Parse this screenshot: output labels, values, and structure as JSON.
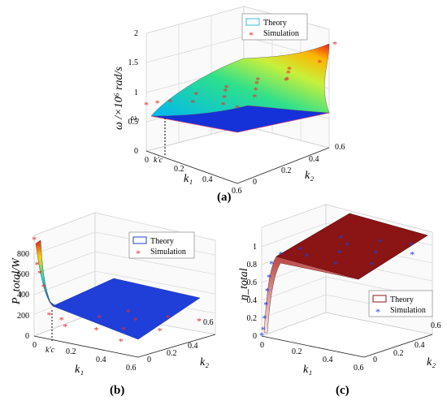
{
  "chart_data": [
    {
      "panel": "(a)",
      "type": "surface",
      "zlabel": "ω /×10⁶ rad/s",
      "xlabel": "k₁",
      "ylabel": "k₂",
      "z_annotation": "ω₀",
      "x_annotation": "k′c",
      "x_ticks": [
        "0",
        "0.2",
        "0.4",
        "0.6"
      ],
      "y_ticks": [
        "0",
        "0.2",
        "0.4",
        "0.6"
      ],
      "z_ticks": [
        "0",
        "0.5",
        "1",
        "1.5",
        "2"
      ],
      "xlim": [
        0,
        0.6
      ],
      "ylim": [
        0,
        0.6
      ],
      "zlim": [
        0,
        2
      ],
      "kc": 0.07,
      "legend": [
        {
          "label": "Theory",
          "marker": "surface",
          "color": "#3bb8e0"
        },
        {
          "label": "Simulation",
          "marker": "*",
          "color": "#e03030"
        }
      ],
      "series": [
        {
          "name": "Theory",
          "type": "surface",
          "description": "upper surface rises with k1 and k2 up to ~1.95; flat blue plane at ω0 ≈ 0.8 for k1 < k'c"
        },
        {
          "name": "Simulation",
          "type": "scatter",
          "points": [
            {
              "k1": 0.0,
              "k2": 0.0,
              "z": 0.8
            },
            {
              "k1": 0.02,
              "k2": 0.05,
              "z": 0.81
            },
            {
              "k1": 0.05,
              "k2": 0.1,
              "z": 0.82
            },
            {
              "k1": 0.06,
              "k2": 0.25,
              "z": 0.85
            },
            {
              "k1": 0.1,
              "k2": 0.4,
              "z": 0.9
            },
            {
              "k1": 0.2,
              "k2": 0.1,
              "z": 0.95
            },
            {
              "k1": 0.2,
              "k2": 0.3,
              "z": 1.0
            },
            {
              "k1": 0.2,
              "k2": 0.5,
              "z": 1.05
            },
            {
              "k1": 0.3,
              "k2": 0.2,
              "z": 1.05
            },
            {
              "k1": 0.3,
              "k2": 0.4,
              "z": 1.15
            },
            {
              "k1": 0.3,
              "k2": 0.6,
              "z": 1.25
            },
            {
              "k1": 0.4,
              "k2": 0.1,
              "z": 1.1
            },
            {
              "k1": 0.4,
              "k2": 0.3,
              "z": 1.2
            },
            {
              "k1": 0.4,
              "k2": 0.5,
              "z": 1.35
            },
            {
              "k1": 0.5,
              "k2": 0.2,
              "z": 1.25
            },
            {
              "k1": 0.5,
              "k2": 0.4,
              "z": 1.4
            },
            {
              "k1": 0.5,
              "k2": 0.6,
              "z": 1.55
            },
            {
              "k1": 0.6,
              "k2": 0.0,
              "z": 1.3
            },
            {
              "k1": 0.6,
              "k2": 0.3,
              "z": 1.55
            },
            {
              "k1": 0.6,
              "k2": 0.6,
              "z": 1.95
            }
          ]
        }
      ]
    },
    {
      "panel": "(b)",
      "type": "surface",
      "zlabel": "P_total/W",
      "xlabel": "k₁",
      "ylabel": "k₂",
      "x_annotation": "k′c",
      "x_ticks": [
        "0",
        "0.2",
        "0.4",
        "0.6"
      ],
      "y_ticks": [
        "0",
        "0.2",
        "0.4",
        "0.6"
      ],
      "z_ticks": [
        "0",
        "200",
        "400",
        "600",
        "800"
      ],
      "xlim": [
        0,
        0.6
      ],
      "ylim": [
        0,
        0.6
      ],
      "zlim": [
        0,
        900
      ],
      "legend": [
        {
          "label": "Theory",
          "marker": "surface",
          "color": "#1f3fd8"
        },
        {
          "label": "Simulation",
          "marker": "*",
          "color": "#e03030"
        }
      ],
      "series": [
        {
          "name": "Theory",
          "type": "surface",
          "description": "sharp peak ~880 W at k1→0, drops to ~150 W at k'c, flat plane ~120 W elsewhere"
        },
        {
          "name": "Simulation",
          "type": "scatter",
          "points": [
            {
              "k1": 0.0,
              "k2": 0.0,
              "z": 870
            },
            {
              "k1": 0.005,
              "k2": 0.02,
              "z": 640
            },
            {
              "k1": 0.01,
              "k2": 0.04,
              "z": 560
            },
            {
              "k1": 0.02,
              "k2": 0.06,
              "z": 430
            },
            {
              "k1": 0.04,
              "k2": 0.08,
              "z": 180
            },
            {
              "k1": 0.1,
              "k2": 0.1,
              "z": 150
            },
            {
              "k1": 0.15,
              "k2": 0.05,
              "z": 120
            },
            {
              "k1": 0.2,
              "k2": 0.3,
              "z": 130
            },
            {
              "k1": 0.25,
              "k2": 0.5,
              "z": 125
            },
            {
              "k1": 0.3,
              "k2": 0.1,
              "z": 120
            },
            {
              "k1": 0.35,
              "k2": 0.4,
              "z": 118
            },
            {
              "k1": 0.4,
              "k2": 0.2,
              "z": 122
            },
            {
              "k1": 0.45,
              "k2": 0.55,
              "z": 120
            },
            {
              "k1": 0.5,
              "k2": 0.0,
              "z": 118
            },
            {
              "k1": 0.55,
              "k2": 0.3,
              "z": 121
            },
            {
              "k1": 0.6,
              "k2": 0.6,
              "z": 120
            }
          ]
        }
      ]
    },
    {
      "panel": "(c)",
      "type": "surface",
      "zlabel": "η_total",
      "xlabel": "k₁",
      "ylabel": "k₂",
      "x_ticks": [
        "0",
        "0.2",
        "0.4",
        "0.6"
      ],
      "y_ticks": [
        "0",
        "0.2",
        "0.4",
        "0.6"
      ],
      "z_ticks": [
        "0",
        "0.2",
        "0.4",
        "0.6",
        "0.8",
        "1"
      ],
      "xlim": [
        0,
        0.6
      ],
      "ylim": [
        0,
        0.6
      ],
      "zlim": [
        0,
        1
      ],
      "legend": [
        {
          "label": "Theory",
          "marker": "surface",
          "color": "#8b1414"
        },
        {
          "label": "Simulation",
          "marker": "*",
          "color": "#1f3fd8"
        }
      ],
      "series": [
        {
          "name": "Theory",
          "type": "surface",
          "description": "rises steeply from 0 at k1=0 to ~0.95 and stays flat"
        },
        {
          "name": "Simulation",
          "type": "scatter",
          "points": [
            {
              "k1": 0.0,
              "k2": 0.0,
              "z": 0.02
            },
            {
              "k1": 0.002,
              "k2": 0.01,
              "z": 0.08
            },
            {
              "k1": 0.004,
              "k2": 0.02,
              "z": 0.2
            },
            {
              "k1": 0.006,
              "k2": 0.03,
              "z": 0.35
            },
            {
              "k1": 0.008,
              "k2": 0.04,
              "z": 0.5
            },
            {
              "k1": 0.012,
              "k2": 0.05,
              "z": 0.65
            },
            {
              "k1": 0.02,
              "k2": 0.06,
              "z": 0.8
            },
            {
              "k1": 0.05,
              "k2": 0.1,
              "z": 0.9
            },
            {
              "k1": 0.1,
              "k2": 0.2,
              "z": 0.93
            },
            {
              "k1": 0.15,
              "k2": 0.5,
              "z": 0.95
            },
            {
              "k1": 0.2,
              "k2": 0.1,
              "z": 0.94
            },
            {
              "k1": 0.25,
              "k2": 0.4,
              "z": 0.95
            },
            {
              "k1": 0.3,
              "k2": 0.25,
              "z": 0.95
            },
            {
              "k1": 0.35,
              "k2": 0.55,
              "z": 0.96
            },
            {
              "k1": 0.4,
              "k2": 0.05,
              "z": 0.95
            },
            {
              "k1": 0.45,
              "k2": 0.35,
              "z": 0.96
            },
            {
              "k1": 0.5,
              "k2": 0.6,
              "z": 0.96
            },
            {
              "k1": 0.55,
              "k2": 0.15,
              "z": 0.96
            },
            {
              "k1": 0.6,
              "k2": 0.45,
              "z": 0.96
            }
          ]
        }
      ]
    }
  ]
}
